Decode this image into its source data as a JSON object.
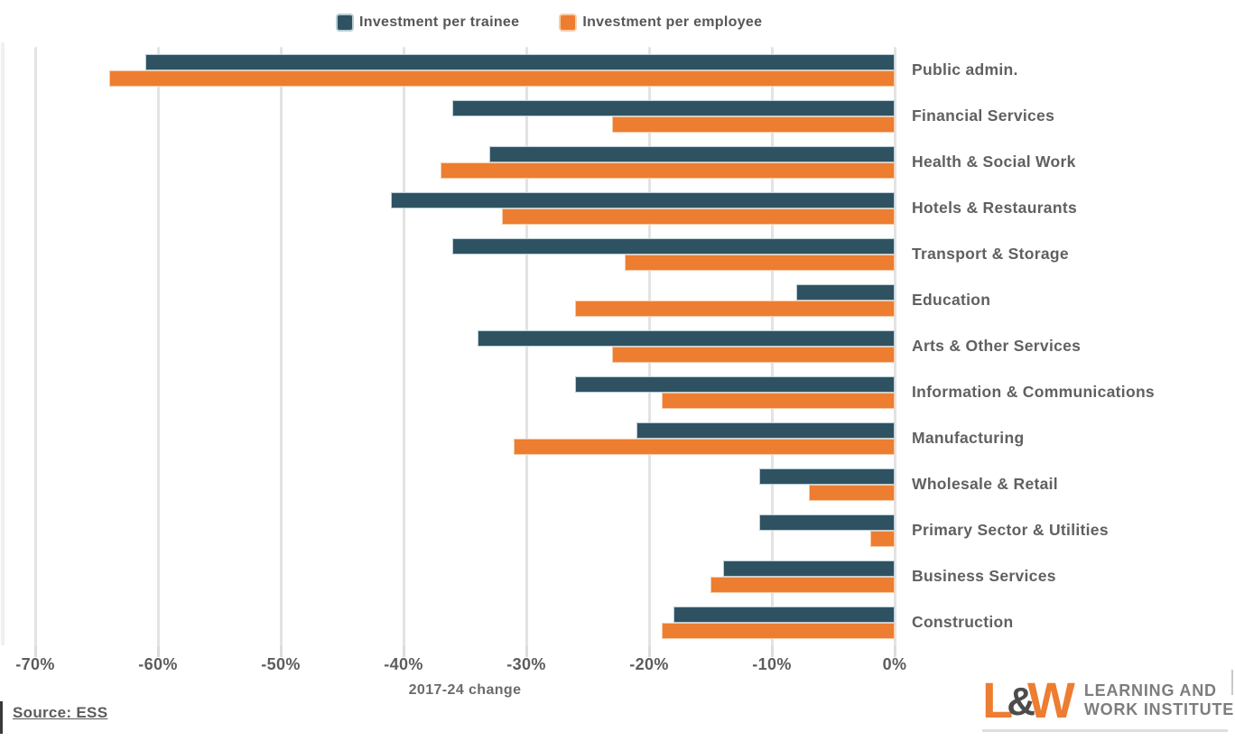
{
  "chart_data": {
    "type": "bar",
    "orientation": "horizontal",
    "xlabel": "2017-24 change",
    "xlim": [
      -70,
      0
    ],
    "x_ticks": [
      -70,
      -60,
      -50,
      -40,
      -30,
      -20,
      -10,
      0
    ],
    "x_tick_labels": [
      "-70%",
      "-60%",
      "-50%",
      "-40%",
      "-30%",
      "-20%",
      "-10%",
      "0%"
    ],
    "grid": "vertical",
    "legend_position": "top",
    "categories": [
      "Public admin.",
      "Financial Services",
      "Health & Social Work",
      "Hotels & Restaurants",
      "Transport & Storage",
      "Education",
      "Arts & Other Services",
      "Information & Communications",
      "Manufacturing",
      "Wholesale & Retail",
      "Primary Sector & Utilities",
      "Business Services",
      "Construction"
    ],
    "series": [
      {
        "name": "Investment per trainee",
        "color": "#2E5261",
        "values": [
          -61,
          -36,
          -33,
          -41,
          -36,
          -8,
          -34,
          -26,
          -21,
          -11,
          -11,
          -14,
          -18
        ]
      },
      {
        "name": "Investment per employee",
        "color": "#ED7D31",
        "values": [
          -64,
          -23,
          -37,
          -32,
          -22,
          -26,
          -23,
          -19,
          -31,
          -7,
          -2,
          -15,
          -19
        ]
      }
    ]
  },
  "source": {
    "text": "Source: ESS"
  },
  "logo": {
    "letter_l": "L",
    "ampersand": "&",
    "letter_w": "W",
    "line1": "LEARNING AND",
    "line2": "WORK INSTITUTE",
    "orange": "#ED7D31",
    "text_gray": "#7D7D7D"
  },
  "colors": {
    "trainee": "#2E5261",
    "employee": "#ED7D31",
    "gridline": "#E3E3E3",
    "label_gray": "#5E5E5E"
  }
}
